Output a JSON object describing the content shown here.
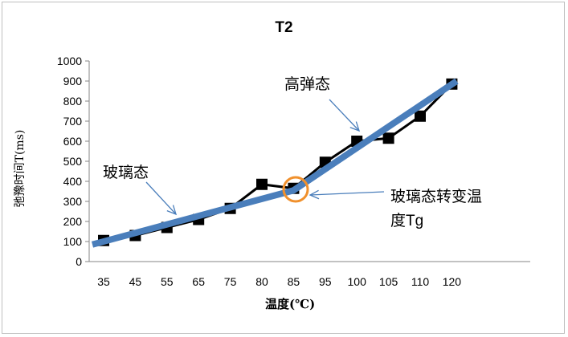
{
  "chart_data": {
    "type": "line",
    "title": "T2",
    "xlabel": "温度(℃)",
    "ylabel": "弛豫时间T(ms)",
    "categories": [
      "35",
      "45",
      "55",
      "65",
      "75",
      "80",
      "85",
      "95",
      "100",
      "105",
      "110",
      "120"
    ],
    "series": [
      {
        "values": [
          105,
          130,
          170,
          210,
          265,
          385,
          365,
          495,
          600,
          615,
          725,
          885
        ],
        "color": "#000000",
        "marker": "square"
      }
    ],
    "trendline": {
      "color": "#4a7ebb",
      "points": [
        [
          "35",
          85
        ],
        [
          "85",
          355
        ],
        [
          "120",
          900
        ]
      ]
    },
    "ylim": [
      0,
      1000
    ],
    "yticks": [
      0,
      100,
      200,
      300,
      400,
      500,
      600,
      700,
      800,
      900,
      1000
    ],
    "grid": false,
    "annotations": {
      "glass": "玻璃态",
      "rubber": "高弹态",
      "tg_line1": "玻璃态转变温",
      "tg_line2": "度Tg",
      "tg_marker_color": "#f0902c",
      "arrow_color": "#4a7ebb"
    }
  }
}
